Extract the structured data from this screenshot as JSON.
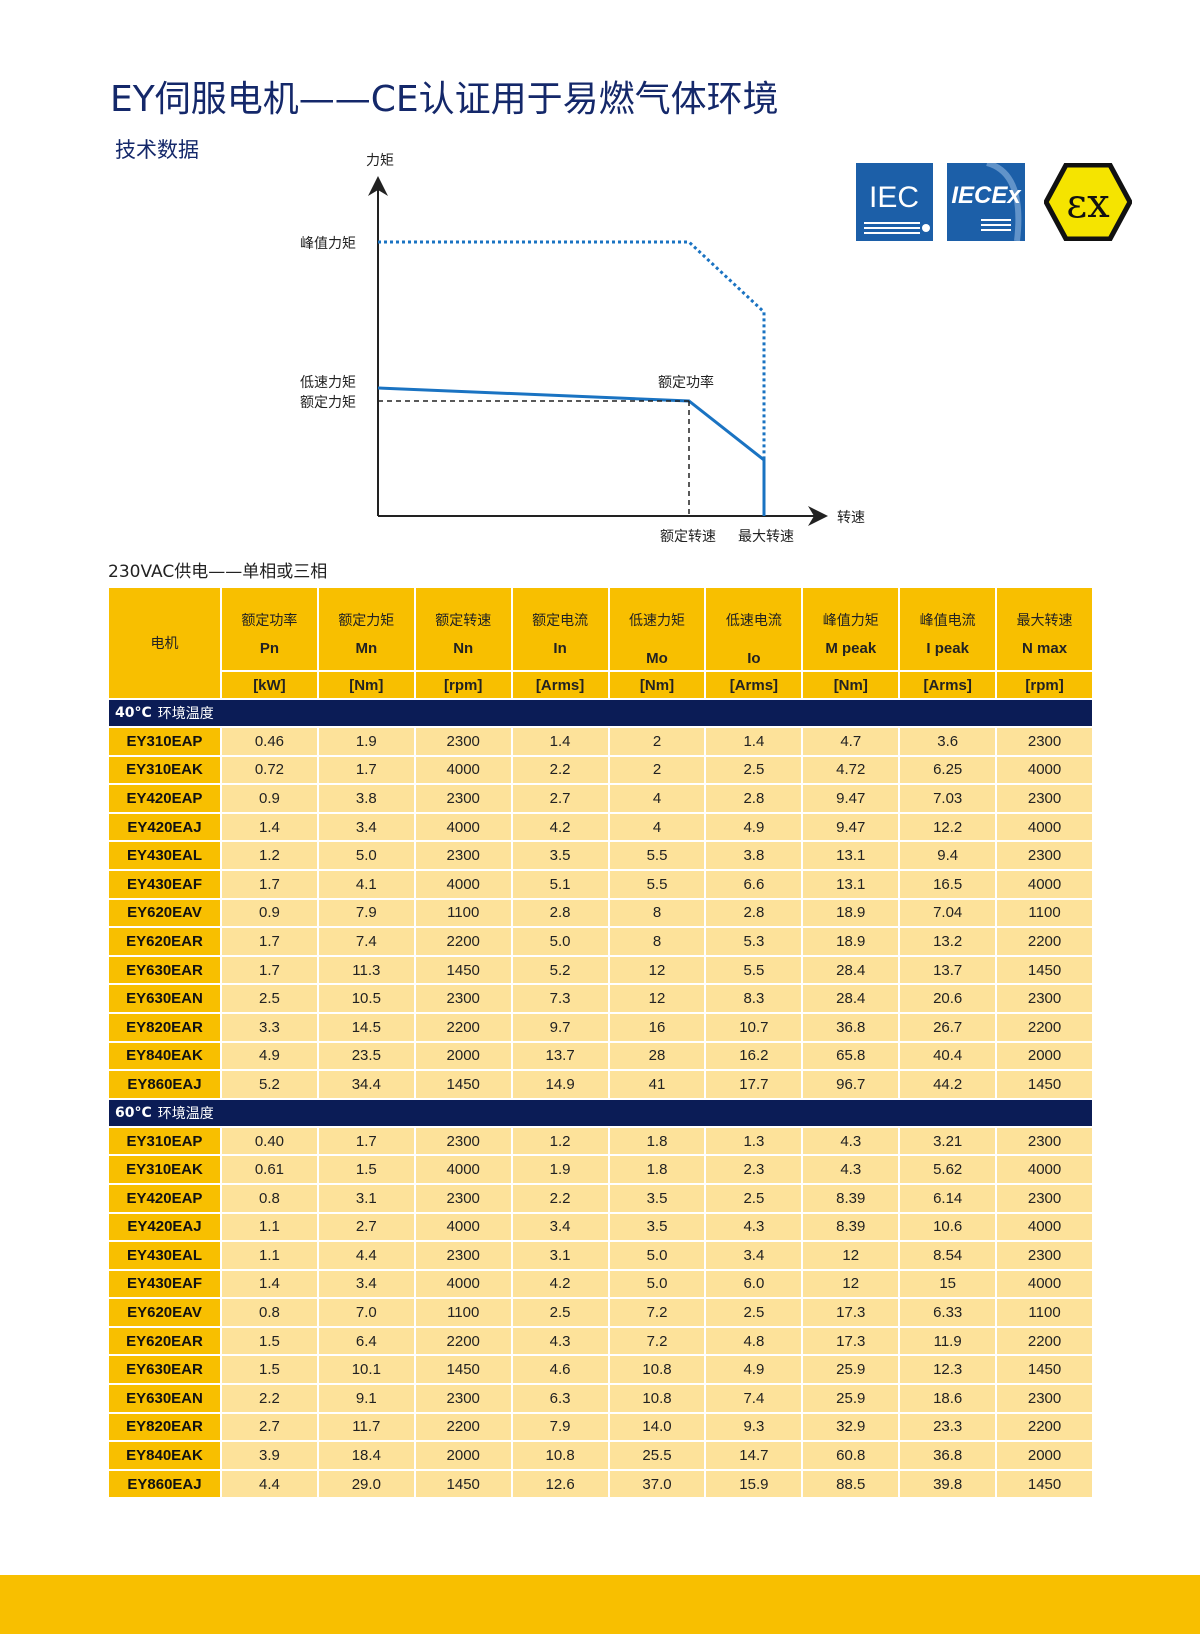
{
  "title": "EY伺服电机——CE认证用于易燃气体环境",
  "subtitle": "技术数据",
  "logos": {
    "iec": "IEC",
    "iecex": "IECEx",
    "ex": "Ex"
  },
  "diagram": {
    "y_axis": "力矩",
    "x_axis": "转速",
    "peak_torque": "峰值力矩",
    "low_speed_torque": "低速力矩",
    "rated_torque": "额定力矩",
    "rated_power": "额定功率",
    "rated_speed": "额定转速",
    "max_speed": "最大转速",
    "colors": {
      "curve": "#1a73c2",
      "axis": "#222222"
    }
  },
  "supply": "230VAC供电——单相或三相",
  "table": {
    "motor_header": "电机",
    "columns": [
      {
        "cn": "额定功率",
        "sym": "Pn",
        "unit": "[kW]"
      },
      {
        "cn": "额定力矩",
        "sym": "Mn",
        "unit": "[Nm]"
      },
      {
        "cn": "额定转速",
        "sym": "Nn",
        "unit": "[rpm]"
      },
      {
        "cn": "额定电流",
        "sym": "In",
        "unit": "[Arms]"
      },
      {
        "cn": "低速力矩",
        "sym": "Mo",
        "unit": "[Nm]"
      },
      {
        "cn": "低速电流",
        "sym": "Io",
        "unit": "[Arms]"
      },
      {
        "cn": "峰值力矩",
        "sym": "M peak",
        "unit": "[Nm]"
      },
      {
        "cn": "峰值电流",
        "sym": "I peak",
        "unit": "[Arms]"
      },
      {
        "cn": "最大转速",
        "sym": "N max",
        "unit": "[rpm]"
      }
    ],
    "sections": [
      {
        "temp": "40°C",
        "label": "环境温度",
        "rows": [
          [
            "EY310EAP",
            "0.46",
            "1.9",
            "2300",
            "1.4",
            "2",
            "1.4",
            "4.7",
            "3.6",
            "2300"
          ],
          [
            "EY310EAK",
            "0.72",
            "1.7",
            "4000",
            "2.2",
            "2",
            "2.5",
            "4.72",
            "6.25",
            "4000"
          ],
          [
            "EY420EAP",
            "0.9",
            "3.8",
            "2300",
            "2.7",
            "4",
            "2.8",
            "9.47",
            "7.03",
            "2300"
          ],
          [
            "EY420EAJ",
            "1.4",
            "3.4",
            "4000",
            "4.2",
            "4",
            "4.9",
            "9.47",
            "12.2",
            "4000"
          ],
          [
            "EY430EAL",
            "1.2",
            "5.0",
            "2300",
            "3.5",
            "5.5",
            "3.8",
            "13.1",
            "9.4",
            "2300"
          ],
          [
            "EY430EAF",
            "1.7",
            "4.1",
            "4000",
            "5.1",
            "5.5",
            "6.6",
            "13.1",
            "16.5",
            "4000"
          ],
          [
            "EY620EAV",
            "0.9",
            "7.9",
            "1100",
            "2.8",
            "8",
            "2.8",
            "18.9",
            "7.04",
            "1100"
          ],
          [
            "EY620EAR",
            "1.7",
            "7.4",
            "2200",
            "5.0",
            "8",
            "5.3",
            "18.9",
            "13.2",
            "2200"
          ],
          [
            "EY630EAR",
            "1.7",
            "11.3",
            "1450",
            "5.2",
            "12",
            "5.5",
            "28.4",
            "13.7",
            "1450"
          ],
          [
            "EY630EAN",
            "2.5",
            "10.5",
            "2300",
            "7.3",
            "12",
            "8.3",
            "28.4",
            "20.6",
            "2300"
          ],
          [
            "EY820EAR",
            "3.3",
            "14.5",
            "2200",
            "9.7",
            "16",
            "10.7",
            "36.8",
            "26.7",
            "2200"
          ],
          [
            "EY840EAK",
            "4.9",
            "23.5",
            "2000",
            "13.7",
            "28",
            "16.2",
            "65.8",
            "40.4",
            "2000"
          ],
          [
            "EY860EAJ",
            "5.2",
            "34.4",
            "1450",
            "14.9",
            "41",
            "17.7",
            "96.7",
            "44.2",
            "1450"
          ]
        ]
      },
      {
        "temp": "60°C",
        "label": "环境温度",
        "rows": [
          [
            "EY310EAP",
            "0.40",
            "1.7",
            "2300",
            "1.2",
            "1.8",
            "1.3",
            "4.3",
            "3.21",
            "2300"
          ],
          [
            "EY310EAK",
            "0.61",
            "1.5",
            "4000",
            "1.9",
            "1.8",
            "2.3",
            "4.3",
            "5.62",
            "4000"
          ],
          [
            "EY420EAP",
            "0.8",
            "3.1",
            "2300",
            "2.2",
            "3.5",
            "2.5",
            "8.39",
            "6.14",
            "2300"
          ],
          [
            "EY420EAJ",
            "1.1",
            "2.7",
            "4000",
            "3.4",
            "3.5",
            "4.3",
            "8.39",
            "10.6",
            "4000"
          ],
          [
            "EY430EAL",
            "1.1",
            "4.4",
            "2300",
            "3.1",
            "5.0",
            "3.4",
            "12",
            "8.54",
            "2300"
          ],
          [
            "EY430EAF",
            "1.4",
            "3.4",
            "4000",
            "4.2",
            "5.0",
            "6.0",
            "12",
            "15",
            "4000"
          ],
          [
            "EY620EAV",
            "0.8",
            "7.0",
            "1100",
            "2.5",
            "7.2",
            "2.5",
            "17.3",
            "6.33",
            "1100"
          ],
          [
            "EY620EAR",
            "1.5",
            "6.4",
            "2200",
            "4.3",
            "7.2",
            "4.8",
            "17.3",
            "11.9",
            "2200"
          ],
          [
            "EY630EAR",
            "1.5",
            "10.1",
            "1450",
            "4.6",
            "10.8",
            "4.9",
            "25.9",
            "12.3",
            "1450"
          ],
          [
            "EY630EAN",
            "2.2",
            "9.1",
            "2300",
            "6.3",
            "10.8",
            "7.4",
            "25.9",
            "18.6",
            "2300"
          ],
          [
            "EY820EAR",
            "2.7",
            "11.7",
            "2200",
            "7.9",
            "14.0",
            "9.3",
            "32.9",
            "23.3",
            "2200"
          ],
          [
            "EY840EAK",
            "3.9",
            "18.4",
            "2000",
            "10.8",
            "25.5",
            "14.7",
            "60.8",
            "36.8",
            "2000"
          ],
          [
            "EY860EAJ",
            "4.4",
            "29.0",
            "1450",
            "12.6",
            "37.0",
            "15.9",
            "88.5",
            "39.8",
            "1450"
          ]
        ]
      }
    ]
  },
  "colors": {
    "navy": "#0b1c56",
    "yellow": "#f8bf00",
    "cell": "#fde29a",
    "title": "#14286a"
  }
}
